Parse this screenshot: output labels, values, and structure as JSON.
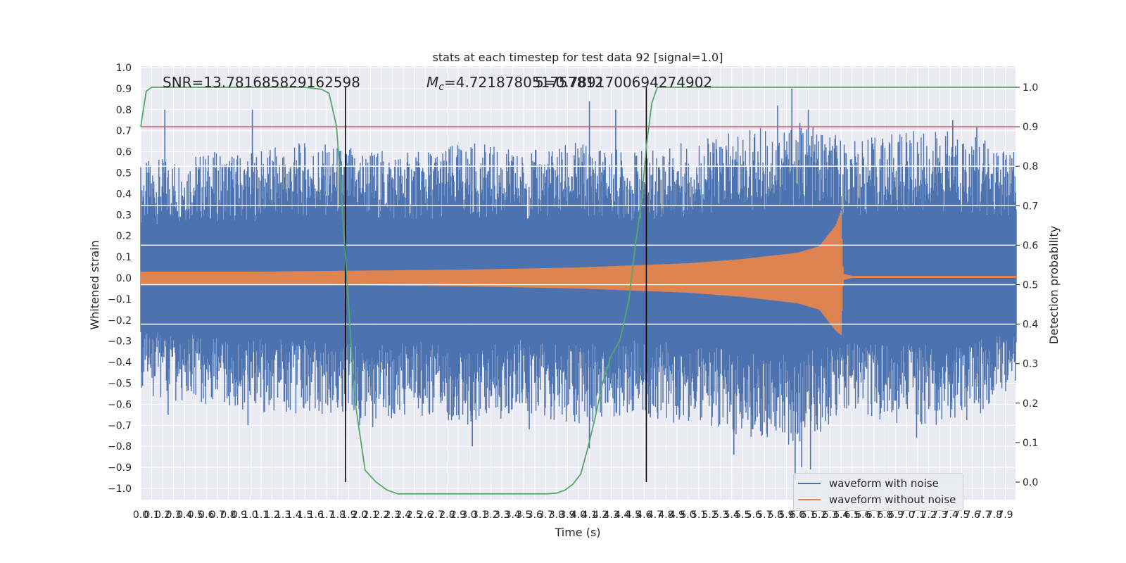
{
  "chart_data": {
    "type": "line",
    "title": "stats at each timestep for test data 92 [signal=1.0]",
    "xlabel": "Time (s)",
    "ylabel": "Whitened strain",
    "y2label": "Detection probability",
    "xlim": [
      0,
      8
    ],
    "ylim": [
      -1.1,
      1.0
    ],
    "y2lim": [
      -0.05,
      1.05
    ],
    "x_ticks": [
      "0.0",
      "0.1",
      "0.2",
      "0.3",
      "0.4",
      "0.5",
      "0.6",
      "0.7",
      "0.8",
      "0.9",
      "1.0",
      "1.1",
      "1.2",
      "1.3",
      "1.4",
      "1.5",
      "1.6",
      "1.7",
      "1.8",
      "1.9",
      "2.0",
      "2.1",
      "2.2",
      "2.3",
      "2.4",
      "2.5",
      "2.6",
      "2.7",
      "2.8",
      "2.9",
      "3.0",
      "3.1",
      "3.2",
      "3.3",
      "3.4",
      "3.5",
      "3.6",
      "3.7",
      "3.8",
      "3.9",
      "4.0",
      "4.1",
      "4.2",
      "4.3",
      "4.4",
      "4.5",
      "4.6",
      "4.7",
      "4.8",
      "4.9",
      "5.0",
      "5.1",
      "5.2",
      "5.3",
      "5.4",
      "5.5",
      "5.6",
      "5.7",
      "5.8",
      "5.9",
      "6.0",
      "6.1",
      "6.2",
      "6.3",
      "6.4",
      "6.5",
      "6.6",
      "6.7",
      "6.8",
      "6.9",
      "7.0",
      "7.1",
      "7.2",
      "7.3",
      "7.4",
      "7.5",
      "7.6",
      "7.7",
      "7.8",
      "7.9"
    ],
    "y_ticks": [
      "1.0",
      "0.9",
      "0.8",
      "0.7",
      "0.6",
      "0.5",
      "0.4",
      "0.3",
      "0.2",
      "0.1",
      "0.0",
      "−0.1",
      "−0.2",
      "−0.3",
      "−0.4",
      "−0.5",
      "−0.6",
      "−0.7",
      "−0.8",
      "−0.9",
      "−1.0"
    ],
    "y2_ticks": [
      "1.0",
      "0.9",
      "0.8",
      "0.7",
      "0.6",
      "0.5",
      "0.4",
      "0.3",
      "0.2",
      "0.1",
      "0.0"
    ],
    "annotations": {
      "snr": "SNR=13.781685829162598",
      "mc_prefix": "M",
      "mc_sub": "c",
      "mc_value": "=4.721878051757812",
      "overlap": "5=0.7891700694274902"
    },
    "threshold_y2": 0.9,
    "vlines_x": [
      1.87,
      4.62
    ],
    "white_hlines_y2": [
      0.8,
      0.7,
      0.6,
      0.5,
      0.4
    ],
    "legend": {
      "placement": "lower-right",
      "entries": [
        {
          "label": "waveform with noise",
          "color": "#4c72b0"
        },
        {
          "label": "waveform without noise",
          "color": "#dd8452"
        }
      ]
    },
    "series": [
      {
        "name": "waveform with noise",
        "color": "#4c72b0",
        "axis": "left",
        "envelope_x": [
          0,
          0.5,
          1,
          1.5,
          2,
          2.5,
          3,
          3.5,
          4,
          4.5,
          5,
          5.5,
          6,
          6.5,
          7,
          7.5,
          8
        ],
        "envelope_upper": [
          0.55,
          0.6,
          0.6,
          0.65,
          0.62,
          0.6,
          0.65,
          0.6,
          0.65,
          0.6,
          0.65,
          0.7,
          0.75,
          0.65,
          0.7,
          0.7,
          0.6
        ],
        "envelope_lower": [
          -0.55,
          -0.6,
          -0.65,
          -0.65,
          -0.7,
          -0.65,
          -0.7,
          -0.65,
          -0.7,
          -0.65,
          -0.7,
          -0.75,
          -0.8,
          -0.65,
          -0.7,
          -0.7,
          -0.55
        ],
        "spikes": [
          {
            "x": 0.22,
            "y": 0.8
          },
          {
            "x": 0.25,
            "y": -0.65
          },
          {
            "x": 1.02,
            "y": 0.8
          },
          {
            "x": 0.98,
            "y": -0.7
          },
          {
            "x": 1.87,
            "y": -0.75
          },
          {
            "x": 2.12,
            "y": -0.71
          },
          {
            "x": 3.03,
            "y": -0.8
          },
          {
            "x": 3.55,
            "y": -0.72
          },
          {
            "x": 4.1,
            "y": 0.84
          },
          {
            "x": 4.1,
            "y": -0.81
          },
          {
            "x": 4.34,
            "y": 0.8
          },
          {
            "x": 5.42,
            "y": -0.84
          },
          {
            "x": 5.82,
            "y": 0.82
          },
          {
            "x": 5.95,
            "y": 0.9
          },
          {
            "x": 5.98,
            "y": -0.96
          },
          {
            "x": 6.1,
            "y": 0.8
          },
          {
            "x": 6.12,
            "y": -0.91
          },
          {
            "x": 6.04,
            "y": -0.9
          },
          {
            "x": 7.42,
            "y": 0.75
          },
          {
            "x": 7.64,
            "y": 0.72
          },
          {
            "x": 7.09,
            "y": -0.76
          }
        ]
      },
      {
        "name": "waveform without noise",
        "color": "#dd8452",
        "axis": "left",
        "envelope_x": [
          0,
          1,
          2,
          3,
          4,
          4.5,
          5,
          5.5,
          6,
          6.2,
          6.35,
          6.4,
          6.42,
          6.5,
          7,
          8
        ],
        "envelope_upper": [
          0.03,
          0.03,
          0.035,
          0.04,
          0.05,
          0.06,
          0.07,
          0.09,
          0.12,
          0.15,
          0.25,
          0.32,
          0.02,
          0.01,
          0.01,
          0.01
        ],
        "envelope_lower": [
          -0.03,
          -0.03,
          -0.035,
          -0.04,
          -0.05,
          -0.06,
          -0.07,
          -0.09,
          -0.12,
          -0.15,
          -0.25,
          -0.27,
          -0.01,
          -0.0,
          0,
          0
        ]
      },
      {
        "name": "detection probability",
        "color": "#55a868",
        "axis": "right",
        "x": [
          0,
          0.05,
          0.1,
          0.2,
          0.4,
          0.8,
          1.2,
          1.5,
          1.65,
          1.72,
          1.79,
          1.84,
          1.9,
          1.95,
          2.05,
          2.15,
          2.25,
          2.35,
          2.5,
          3,
          3.5,
          3.7,
          3.8,
          3.88,
          3.95,
          4.02,
          4.08,
          4.15,
          4.22,
          4.3,
          4.38,
          4.46,
          4.52,
          4.58,
          4.62,
          4.67,
          4.72,
          4.8,
          5,
          6,
          7,
          8
        ],
        "y": [
          0.9,
          0.99,
          1.0,
          1.0,
          1.0,
          1.0,
          1.0,
          1.0,
          0.995,
          0.985,
          0.9,
          0.7,
          0.45,
          0.22,
          0.03,
          0.0,
          -0.02,
          -0.03,
          -0.03,
          -0.03,
          -0.03,
          -0.03,
          -0.028,
          -0.02,
          -0.005,
          0.02,
          0.08,
          0.16,
          0.25,
          0.32,
          0.36,
          0.46,
          0.6,
          0.72,
          0.85,
          0.96,
          1.0,
          1.0,
          1.0,
          1.0,
          1.0,
          1.0
        ]
      }
    ]
  }
}
